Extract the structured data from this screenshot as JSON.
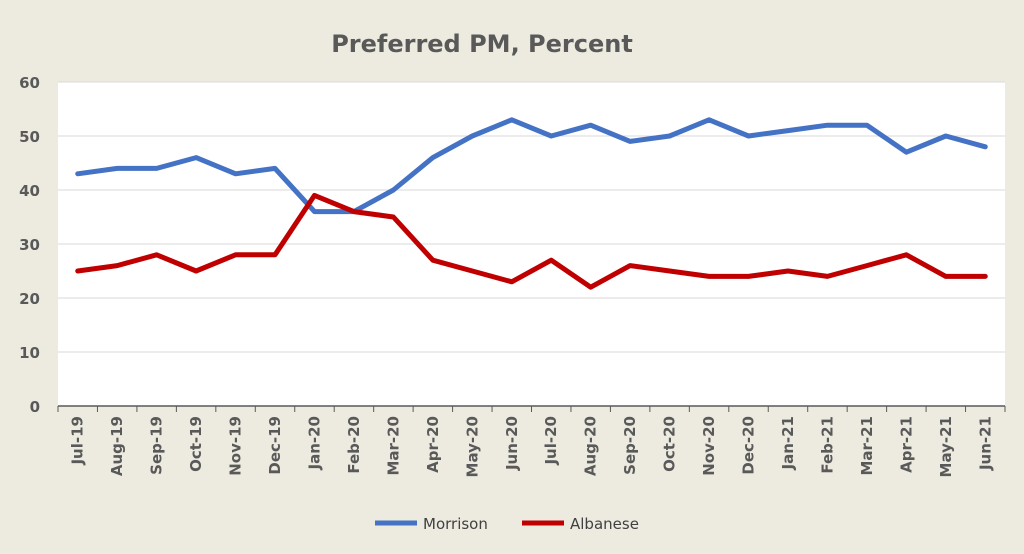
{
  "chart_data": {
    "type": "line",
    "title": "Preferred PM, Percent",
    "xlabel": "",
    "ylabel": "",
    "ylim": [
      0,
      60
    ],
    "yticks": [
      0,
      10,
      20,
      30,
      40,
      50,
      60
    ],
    "grid": true,
    "legend_position": "bottom",
    "categories": [
      "Jul-19",
      "Aug-19",
      "Sep-19",
      "Oct-19",
      "Nov-19",
      "Dec-19",
      "Jan-20",
      "Feb-20",
      "Mar-20",
      "Apr-20",
      "May-20",
      "Jun-20",
      "Jul-20",
      "Aug-20",
      "Sep-20",
      "Oct-20",
      "Nov-20",
      "Dec-20",
      "Jan-21",
      "Feb-21",
      "Mar-21",
      "Apr-21",
      "May-21",
      "Jun-21"
    ],
    "series": [
      {
        "name": "Morrison",
        "color": "#4472C4",
        "values": [
          43,
          44,
          44,
          46,
          43,
          44,
          36,
          36,
          40,
          46,
          50,
          53,
          50,
          52,
          49,
          50,
          53,
          50,
          51,
          52,
          52,
          47,
          50,
          48
        ]
      },
      {
        "name": "Albanese",
        "color": "#C00000",
        "values": [
          25,
          26,
          28,
          25,
          28,
          28,
          39,
          36,
          35,
          27,
          25,
          23,
          27,
          22,
          26,
          25,
          24,
          24,
          25,
          24,
          26,
          28,
          24,
          24
        ]
      }
    ]
  }
}
